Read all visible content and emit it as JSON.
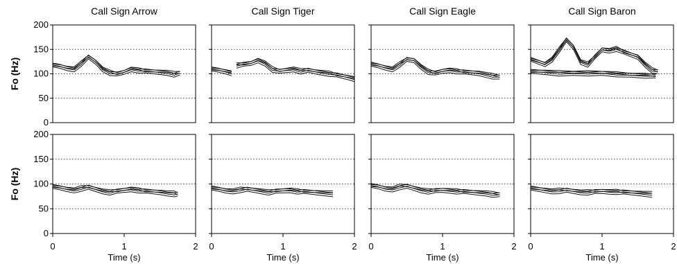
{
  "chart_data": [
    {
      "type": "line",
      "title": "Call Sign Arrow",
      "ylabel": "Fo (Hz)",
      "xlabel": "",
      "ylim": [
        0,
        200
      ],
      "xlim": [
        0,
        2
      ],
      "yticks": [
        0,
        50,
        100,
        150,
        200
      ],
      "grid": "dotted horizontal",
      "series": [
        {
          "values": [
            [
              0.0,
              118
            ],
            [
              0.1,
              116
            ],
            [
              0.2,
              112
            ],
            [
              0.3,
              110
            ],
            [
              0.4,
              122
            ],
            [
              0.5,
              135
            ],
            [
              0.6,
              125
            ],
            [
              0.7,
              110
            ],
            [
              0.8,
              103
            ],
            [
              0.9,
              100
            ],
            [
              1.0,
              104
            ],
            [
              1.1,
              110
            ],
            [
              1.2,
              108
            ],
            [
              1.3,
              106
            ],
            [
              1.4,
              105
            ],
            [
              1.5,
              104
            ],
            [
              1.6,
              103
            ],
            [
              1.7,
              100
            ],
            [
              1.78,
              102
            ]
          ]
        }
      ]
    },
    {
      "type": "line",
      "title": "Call Sign Tiger",
      "ylabel": "",
      "xlabel": "",
      "ylim": [
        0,
        200
      ],
      "xlim": [
        0,
        2
      ],
      "yticks": [
        0,
        50,
        100,
        150,
        200
      ],
      "grid": "dotted horizontal",
      "series": [
        {
          "values": [
            [
              0.0,
              110
            ],
            [
              0.1,
              108
            ],
            [
              0.2,
              105
            ],
            [
              0.28,
              102
            ]
          ]
        },
        {
          "values": [
            [
              0.35,
              118
            ],
            [
              0.45,
              120
            ],
            [
              0.55,
              122
            ],
            [
              0.65,
              128
            ],
            [
              0.75,
              122
            ],
            [
              0.85,
              110
            ],
            [
              0.95,
              106
            ],
            [
              1.05,
              108
            ],
            [
              1.15,
              110
            ],
            [
              1.25,
              106
            ],
            [
              1.35,
              108
            ],
            [
              1.45,
              105
            ],
            [
              1.55,
              103
            ],
            [
              1.65,
              101
            ],
            [
              1.75,
              98
            ],
            [
              1.85,
              95
            ],
            [
              1.95,
              92
            ],
            [
              2.0,
              90
            ]
          ]
        }
      ]
    },
    {
      "type": "line",
      "title": "Call Sign Eagle",
      "ylabel": "",
      "xlabel": "",
      "ylim": [
        0,
        200
      ],
      "xlim": [
        0,
        2
      ],
      "yticks": [
        0,
        50,
        100,
        150,
        200
      ],
      "grid": "dotted horizontal",
      "series": [
        {
          "values": [
            [
              0.0,
              120
            ],
            [
              0.1,
              117
            ],
            [
              0.2,
              113
            ],
            [
              0.3,
              110
            ],
            [
              0.4,
              120
            ],
            [
              0.5,
              130
            ],
            [
              0.6,
              128
            ],
            [
              0.7,
              115
            ],
            [
              0.8,
              105
            ],
            [
              0.9,
              102
            ],
            [
              1.0,
              106
            ],
            [
              1.1,
              108
            ],
            [
              1.2,
              106
            ],
            [
              1.3,
              104
            ],
            [
              1.4,
              103
            ],
            [
              1.5,
              102
            ],
            [
              1.6,
              99
            ],
            [
              1.7,
              96
            ],
            [
              1.8,
              94
            ]
          ]
        }
      ]
    },
    {
      "type": "line",
      "title": "Call Sign Baron",
      "ylabel": "",
      "xlabel": "",
      "ylim": [
        0,
        200
      ],
      "xlim": [
        0,
        2
      ],
      "yticks": [
        0,
        50,
        100,
        150,
        200
      ],
      "grid": "dotted horizontal",
      "series": [
        {
          "values": [
            [
              0.0,
              130
            ],
            [
              0.1,
              125
            ],
            [
              0.2,
              120
            ],
            [
              0.3,
              130
            ],
            [
              0.4,
              150
            ],
            [
              0.5,
              170
            ],
            [
              0.6,
              155
            ],
            [
              0.7,
              125
            ],
            [
              0.8,
              120
            ],
            [
              0.9,
              135
            ],
            [
              1.0,
              150
            ],
            [
              1.1,
              148
            ],
            [
              1.2,
              152
            ],
            [
              1.3,
              145
            ],
            [
              1.4,
              140
            ],
            [
              1.5,
              135
            ],
            [
              1.6,
              120
            ],
            [
              1.7,
              108
            ],
            [
              1.78,
              105
            ]
          ]
        },
        {
          "values": [
            [
              0.0,
              105
            ],
            [
              0.2,
              104
            ],
            [
              0.4,
              102
            ],
            [
              0.6,
              102
            ],
            [
              0.8,
              102
            ],
            [
              1.0,
              102
            ],
            [
              1.2,
              100
            ],
            [
              1.4,
              98
            ],
            [
              1.6,
              97
            ],
            [
              1.75,
              96
            ]
          ]
        }
      ]
    },
    {
      "type": "line",
      "title": "",
      "ylabel": "Fo (Hz)",
      "xlabel": "Time (s)",
      "ylim": [
        0,
        200
      ],
      "xlim": [
        0,
        2
      ],
      "yticks": [
        0,
        50,
        100,
        150,
        200
      ],
      "xticks": [
        0,
        1,
        2
      ],
      "grid": "dotted horizontal",
      "series": [
        {
          "values": [
            [
              0.0,
              95
            ],
            [
              0.1,
              93
            ],
            [
              0.2,
              90
            ],
            [
              0.3,
              88
            ],
            [
              0.4,
              92
            ],
            [
              0.5,
              94
            ],
            [
              0.6,
              90
            ],
            [
              0.7,
              86
            ],
            [
              0.8,
              84
            ],
            [
              0.9,
              86
            ],
            [
              1.0,
              88
            ],
            [
              1.1,
              90
            ],
            [
              1.2,
              88
            ],
            [
              1.3,
              86
            ],
            [
              1.4,
              85
            ],
            [
              1.5,
              84
            ],
            [
              1.6,
              82
            ],
            [
              1.7,
              81
            ],
            [
              1.75,
              80
            ]
          ]
        }
      ]
    },
    {
      "type": "line",
      "title": "",
      "ylabel": "",
      "xlabel": "Time (s)",
      "ylim": [
        0,
        200
      ],
      "xlim": [
        0,
        2
      ],
      "yticks": [
        0,
        50,
        100,
        150,
        200
      ],
      "xticks": [
        0,
        1,
        2
      ],
      "grid": "dotted horizontal",
      "series": [
        {
          "values": [
            [
              0.0,
              92
            ],
            [
              0.1,
              90
            ],
            [
              0.2,
              87
            ],
            [
              0.3,
              86
            ],
            [
              0.4,
              89
            ],
            [
              0.5,
              90
            ],
            [
              0.6,
              88
            ],
            [
              0.7,
              86
            ],
            [
              0.8,
              84
            ],
            [
              0.9,
              86
            ],
            [
              1.0,
              87
            ],
            [
              1.1,
              88
            ],
            [
              1.2,
              86
            ],
            [
              1.3,
              85
            ],
            [
              1.4,
              84
            ],
            [
              1.5,
              83
            ],
            [
              1.6,
              82
            ],
            [
              1.7,
              81
            ]
          ]
        }
      ]
    },
    {
      "type": "line",
      "title": "",
      "ylabel": "",
      "xlabel": "Time (s)",
      "ylim": [
        0,
        200
      ],
      "xlim": [
        0,
        2
      ],
      "yticks": [
        0,
        50,
        100,
        150,
        200
      ],
      "xticks": [
        0,
        1,
        2
      ],
      "grid": "dotted horizontal",
      "series": [
        {
          "values": [
            [
              0.0,
              97
            ],
            [
              0.1,
              95
            ],
            [
              0.2,
              91
            ],
            [
              0.3,
              90
            ],
            [
              0.4,
              95
            ],
            [
              0.5,
              96
            ],
            [
              0.6,
              92
            ],
            [
              0.7,
              88
            ],
            [
              0.8,
              86
            ],
            [
              0.9,
              87
            ],
            [
              1.0,
              88
            ],
            [
              1.1,
              87
            ],
            [
              1.2,
              86
            ],
            [
              1.3,
              85
            ],
            [
              1.4,
              84
            ],
            [
              1.5,
              83
            ],
            [
              1.6,
              82
            ],
            [
              1.7,
              80
            ],
            [
              1.8,
              79
            ]
          ]
        }
      ]
    },
    {
      "type": "line",
      "title": "",
      "ylabel": "",
      "xlabel": "Time (s)",
      "ylim": [
        0,
        200
      ],
      "xlim": [
        0,
        2
      ],
      "yticks": [
        0,
        50,
        100,
        150,
        200
      ],
      "xticks": [
        0,
        1,
        2
      ],
      "grid": "dotted horizontal",
      "series": [
        {
          "values": [
            [
              0.0,
              92
            ],
            [
              0.1,
              90
            ],
            [
              0.2,
              88
            ],
            [
              0.3,
              86
            ],
            [
              0.4,
              87
            ],
            [
              0.5,
              88
            ],
            [
              0.6,
              86
            ],
            [
              0.7,
              84
            ],
            [
              0.8,
              84
            ],
            [
              0.9,
              85
            ],
            [
              1.0,
              86
            ],
            [
              1.1,
              85
            ],
            [
              1.2,
              85
            ],
            [
              1.3,
              84
            ],
            [
              1.4,
              83
            ],
            [
              1.5,
              82
            ],
            [
              1.6,
              81
            ],
            [
              1.7,
              80
            ]
          ]
        }
      ]
    }
  ]
}
